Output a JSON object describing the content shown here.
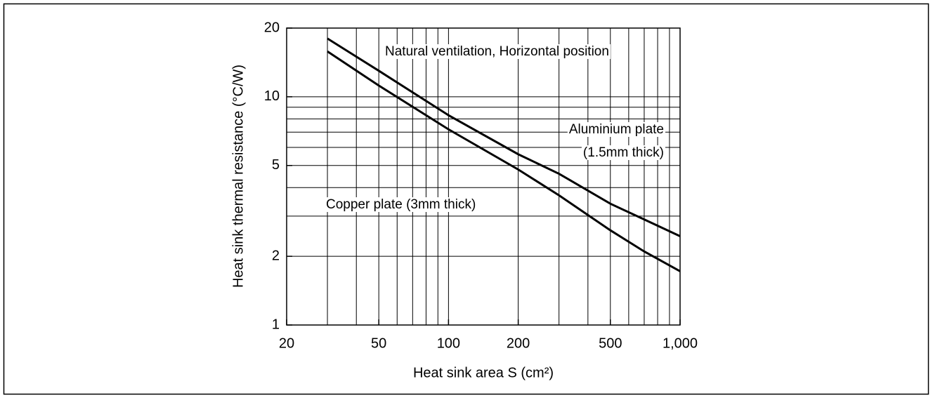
{
  "chart_data": {
    "type": "line",
    "xlabel": "Heat sink area S  (cm²)",
    "ylabel": "Heat sink thermal resistance (°C/W)",
    "xlog": true,
    "ylog": true,
    "grid": true,
    "xlim": [
      20,
      1000
    ],
    "ylim": [
      1,
      20
    ],
    "xticks": [
      20,
      50,
      100,
      200,
      500,
      {
        "value": 1000,
        "label": "1,000"
      }
    ],
    "yticks": [
      1,
      2,
      5,
      10,
      20
    ],
    "xgrid": [
      30,
      40,
      50,
      60,
      70,
      80,
      90,
      100,
      200,
      300,
      400,
      500,
      600,
      700,
      800,
      900
    ],
    "ygrid": [
      2,
      3,
      4,
      5,
      6,
      7,
      8,
      9,
      10
    ],
    "x": [
      30,
      50,
      100,
      200,
      300,
      500,
      700,
      1000
    ],
    "series": [
      {
        "name": "Aluminium plate (1.5mm thick)",
        "color": "#000000",
        "values": [
          18,
          13,
          8.3,
          5.6,
          4.6,
          3.4,
          2.9,
          2.45
        ]
      },
      {
        "name": "Copper plate (3mm thick)",
        "color": "#000000",
        "values": [
          15.8,
          11.2,
          7.2,
          4.8,
          3.7,
          2.6,
          2.1,
          1.72
        ]
      }
    ],
    "annotations": [
      "Natural ventilation, Horizontal position",
      "Aluminium plate",
      "(1.5mm thick)",
      "Copper plate (3mm thick)"
    ]
  }
}
